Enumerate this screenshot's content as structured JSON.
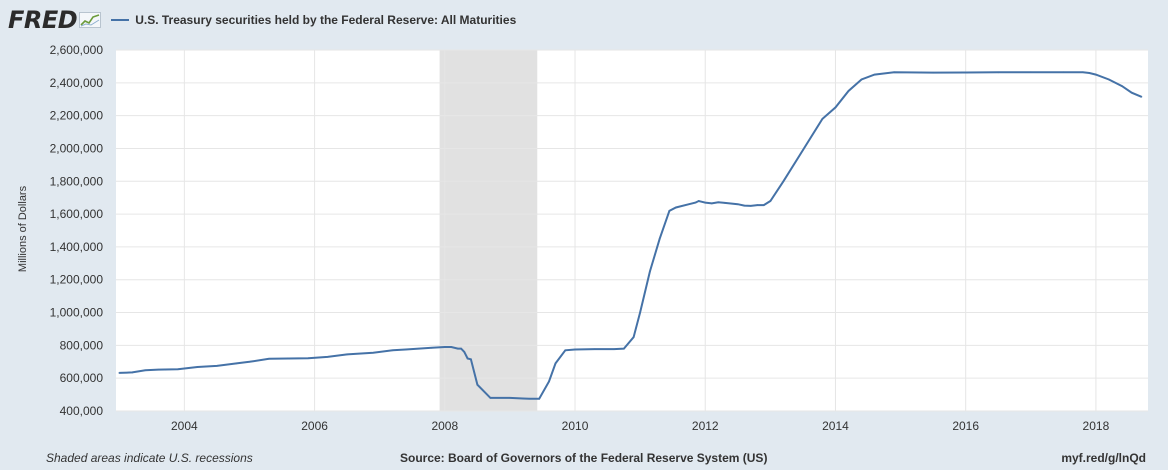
{
  "header": {
    "logo_text": "FRED",
    "series_title": "U.S. Treasury securities held by the Federal Reserve: All Maturities"
  },
  "footer": {
    "recession_note": "Shaded areas indicate U.S. recessions",
    "source": "Source: Board of Governors of the Federal Reserve System (US)",
    "short_url": "myf.red/g/lnQd"
  },
  "colors": {
    "background": "#e1e9f0",
    "plot_background": "#ffffff",
    "line": "#4572a7",
    "recession_shade": "#e1e1e1",
    "grid": "#e6e6e6"
  },
  "chart_data": {
    "type": "line",
    "title": "U.S. Treasury securities held by the Federal Reserve: All Maturities",
    "xlabel": "",
    "ylabel": "Millions of Dollars",
    "xlim": [
      2002.95,
      2018.8
    ],
    "ylim": [
      400000,
      2600000
    ],
    "x_ticks": [
      "2004",
      "2006",
      "2008",
      "2010",
      "2012",
      "2014",
      "2016",
      "2018"
    ],
    "x_tick_values": [
      2004,
      2006,
      2008,
      2010,
      2012,
      2014,
      2016,
      2018
    ],
    "y_ticks": [
      "400,000",
      "600,000",
      "800,000",
      "1,000,000",
      "1,200,000",
      "1,400,000",
      "1,600,000",
      "1,800,000",
      "2,000,000",
      "2,200,000",
      "2,400,000",
      "2,600,000"
    ],
    "y_tick_values": [
      400000,
      600000,
      800000,
      1000000,
      1200000,
      1400000,
      1600000,
      1800000,
      2000000,
      2200000,
      2400000,
      2600000
    ],
    "recessions": [
      {
        "start": 2007.92,
        "end": 2009.42
      }
    ],
    "grid": true,
    "series": [
      {
        "x": [
          2003.0,
          2003.2,
          2003.4,
          2003.6,
          2003.9,
          2004.2,
          2004.5,
          2004.8,
          2005.0,
          2005.3,
          2005.6,
          2005.9,
          2006.2,
          2006.5,
          2006.9,
          2007.2,
          2007.4,
          2007.6,
          2007.8,
          2008.0,
          2008.1,
          2008.2,
          2008.25,
          2008.3,
          2008.35,
          2008.4,
          2008.5,
          2008.7,
          2009.0,
          2009.2,
          2009.3,
          2009.45,
          2009.6,
          2009.7,
          2009.85,
          2010.0,
          2010.3,
          2010.6,
          2010.75,
          2010.9,
          2011.0,
          2011.15,
          2011.3,
          2011.45,
          2011.55,
          2011.75,
          2011.85,
          2011.9,
          2011.95,
          2012.0,
          2012.1,
          2012.2,
          2012.3,
          2012.5,
          2012.6,
          2012.7,
          2012.8,
          2012.9,
          2013.0,
          2013.2,
          2013.5,
          2013.8,
          2014.0,
          2014.2,
          2014.4,
          2014.6,
          2014.9,
          2015.5,
          2016.0,
          2016.5,
          2017.0,
          2017.5,
          2017.8,
          2017.9,
          2018.0,
          2018.2,
          2018.4,
          2018.55,
          2018.7
        ],
        "values": [
          632000,
          635000,
          648000,
          652000,
          655000,
          668000,
          675000,
          690000,
          700000,
          718000,
          720000,
          722000,
          730000,
          745000,
          755000,
          770000,
          775000,
          780000,
          785000,
          790000,
          790000,
          780000,
          780000,
          760000,
          720000,
          715000,
          560000,
          480000,
          480000,
          476000,
          475000,
          475000,
          580000,
          690000,
          770000,
          775000,
          777000,
          777000,
          780000,
          850000,
          1000000,
          1250000,
          1450000,
          1620000,
          1640000,
          1660000,
          1670000,
          1680000,
          1675000,
          1670000,
          1665000,
          1672000,
          1668000,
          1660000,
          1652000,
          1650000,
          1655000,
          1655000,
          1680000,
          1800000,
          1990000,
          2180000,
          2250000,
          2350000,
          2420000,
          2450000,
          2465000,
          2462000,
          2463000,
          2464000,
          2465000,
          2465000,
          2465000,
          2460000,
          2450000,
          2420000,
          2380000,
          2340000,
          2315000
        ]
      }
    ]
  }
}
